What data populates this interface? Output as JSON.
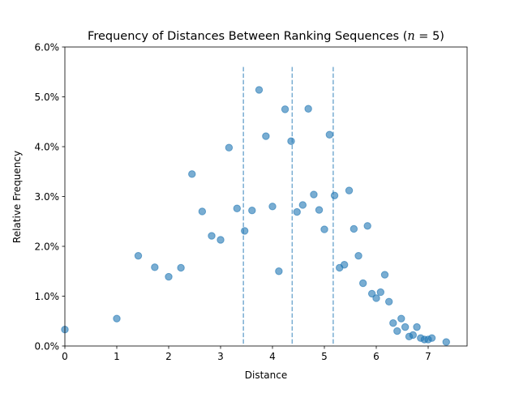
{
  "chart_data": {
    "type": "scatter",
    "title": "Frequency of Distances Between Ranking Sequences (",
    "title_math_n": "n",
    "title_math_rest": " = 5)",
    "xlabel": "Distance",
    "ylabel": "Relative Frequency",
    "xlim": [
      0,
      7.75
    ],
    "ylim": [
      0,
      0.06
    ],
    "x_ticks": [
      0,
      1,
      2,
      3,
      4,
      5,
      6,
      7
    ],
    "x_tick_labels": [
      "0",
      "1",
      "2",
      "3",
      "4",
      "5",
      "6",
      "7"
    ],
    "y_ticks": [
      0,
      0.01,
      0.02,
      0.03,
      0.04,
      0.05,
      0.06
    ],
    "y_tick_labels": [
      "0.0%",
      "1.0%",
      "2.0%",
      "3.0%",
      "4.0%",
      "5.0%",
      "6.0%"
    ],
    "vlines": [
      3.44,
      4.38,
      5.17
    ],
    "point_color": "#1f77b4",
    "point_alpha": 0.6,
    "grid": false,
    "series": [
      {
        "name": "frequency",
        "x": [
          0,
          1,
          1.414,
          1.732,
          2,
          2.236,
          2.449,
          2.646,
          2.828,
          3,
          3.162,
          3.317,
          3.464,
          3.606,
          3.742,
          3.873,
          4,
          4.123,
          4.243,
          4.359,
          4.472,
          4.583,
          4.69,
          4.796,
          4.899,
          5,
          5.099,
          5.196,
          5.292,
          5.385,
          5.477,
          5.568,
          5.657,
          5.745,
          5.831,
          5.916,
          6,
          6.083,
          6.164,
          6.245,
          6.325,
          6.403,
          6.481,
          6.557,
          6.633,
          6.708,
          6.782,
          6.856,
          6.928,
          7,
          7.071,
          7.348
        ],
        "y": [
          0.0033,
          0.0055,
          0.0181,
          0.0158,
          0.0139,
          0.0157,
          0.0345,
          0.027,
          0.0221,
          0.0213,
          0.0398,
          0.0276,
          0.0231,
          0.0272,
          0.0514,
          0.0421,
          0.028,
          0.015,
          0.0475,
          0.0411,
          0.0269,
          0.0283,
          0.0476,
          0.0304,
          0.0273,
          0.0234,
          0.0424,
          0.0302,
          0.0157,
          0.0163,
          0.0312,
          0.0235,
          0.0181,
          0.0126,
          0.0241,
          0.0105,
          0.0096,
          0.0108,
          0.0143,
          0.0089,
          0.0046,
          0.003,
          0.0055,
          0.0038,
          0.0019,
          0.0022,
          0.0038,
          0.0016,
          0.0013,
          0.0013,
          0.0016,
          0.0008
        ]
      }
    ]
  }
}
